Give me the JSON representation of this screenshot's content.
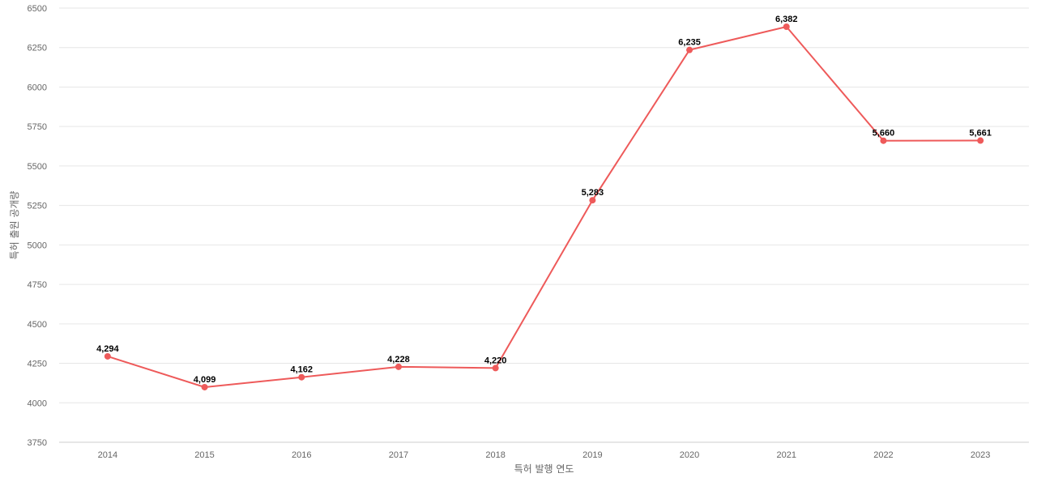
{
  "chart_data": {
    "type": "line",
    "xlabel": "특허 발행 연도",
    "ylabel": "특허 출원 공개량",
    "categories": [
      "2014",
      "2015",
      "2016",
      "2017",
      "2018",
      "2019",
      "2020",
      "2021",
      "2022",
      "2023"
    ],
    "series": [
      {
        "values": [
          4294,
          4099,
          4162,
          4228,
          4220,
          5283,
          6235,
          6382,
          5660,
          5661
        ],
        "color": "#ee5a5a"
      }
    ],
    "data_labels": [
      "4,294",
      "4,099",
      "4,162",
      "4,228",
      "4,220",
      "5,283",
      "6,235",
      "6,382",
      "5,660",
      "5,661"
    ],
    "ylim": [
      3750,
      6500
    ],
    "yticks": [
      3750,
      4000,
      4250,
      4500,
      4750,
      5000,
      5250,
      5500,
      5750,
      6000,
      6250,
      6500
    ],
    "grid": true,
    "legend": "none"
  }
}
